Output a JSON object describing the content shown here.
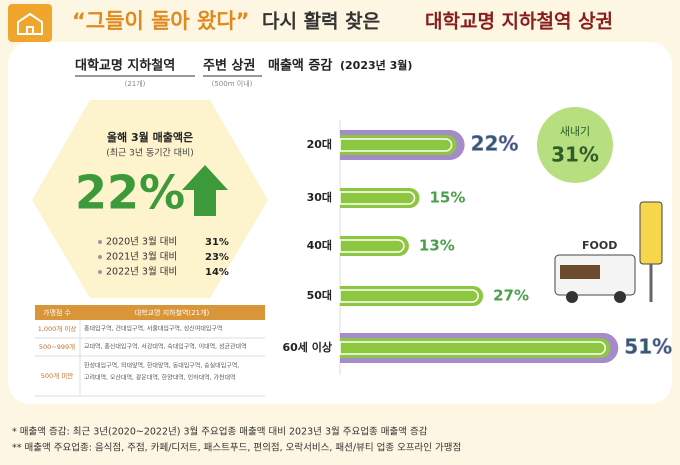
{
  "header": {
    "title_quote": "“그들이 돌아 왔다”",
    "title_middle": "다시 활력 찾은",
    "title_end": "대학교명 지하철역 상권"
  },
  "subtitle": {
    "part1": "대학교명 지하철역",
    "part2": "주변 상권",
    "part3": "매출액 증감",
    "part4": "(2023년 3월)",
    "note1": "(21개)",
    "note2": "(500m 이내)"
  },
  "summary": {
    "line1": "올해 3월 매출액은",
    "line2": "(최근 3년 동기간 대비)",
    "big": "22%",
    "comparisons": [
      {
        "label": "2020년 3월 대비",
        "value": "31%"
      },
      {
        "label": "2021년 3월 대비",
        "value": "23%"
      },
      {
        "label": "2022년 3월 대비",
        "value": "14%"
      }
    ]
  },
  "table": {
    "header": [
      "가맹점 수",
      "대학교명 지하철역(21개)"
    ],
    "rows": [
      [
        "1,000개 이상",
        "홍대입구역, 건대입구역, 서울대입구역, 성신여대입구역"
      ],
      [
        "500~999개",
        "교대역, 홍신대입구역, 서강대역, 숙대입구역, 이대역, 성균관대역"
      ],
      [
        "500개 미만",
        "한성대입구역, 외대앞역, 한대앞역, 동대입구역, 숭실대입구역,",
        "고려대역, 오산대역, 광운대역, 한양대역, 인하대역, 가천대역"
      ]
    ]
  },
  "bubble": {
    "label": "새내기",
    "value": "31%"
  },
  "illustration": {
    "sign": "FOOD"
  },
  "notes": [
    "* 매출액 증감: 최근 3년(2020~2022년) 3월 주요업종 매출액 대비 2023년 3월 주요업종 매출액 증감",
    "** 매출액 주요업종: 음식점, 주점, 카페/디저트, 패스트푸드, 편의점, 오락서비스, 패션/뷰티 업종 오프라인 가맹점"
  ],
  "chart_data": {
    "type": "hbar",
    "categories": [
      "20대",
      "30대",
      "40대",
      "50대",
      "60세 이상"
    ],
    "values": [
      22,
      15,
      13,
      27,
      51
    ],
    "value_labels": [
      "22%",
      "15%",
      "13%",
      "27%",
      "51%"
    ],
    "color": "#8dc63f",
    "highlight": [
      true,
      false,
      false,
      false,
      true
    ],
    "highlight_color": "#a68bcb"
  }
}
